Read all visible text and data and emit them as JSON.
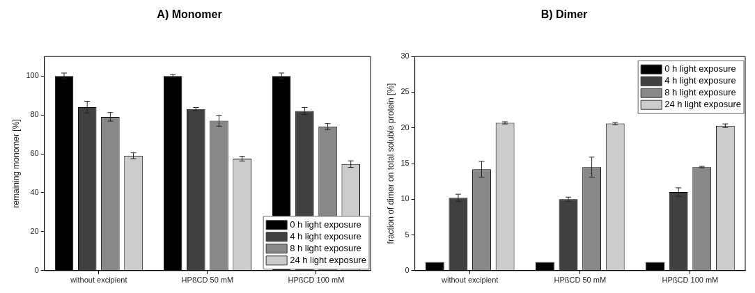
{
  "chart_data": [
    {
      "type": "bar",
      "title": "A) Monomer",
      "ylabel": "remaining monomer [%]",
      "categories": [
        "without excipient",
        "HPßCD 50 mM",
        "HPßCD 100 mM"
      ],
      "ylim": [
        0,
        110
      ],
      "yticks": [
        0,
        20,
        40,
        60,
        80,
        100
      ],
      "grid": false,
      "legend": "bottom right",
      "series": [
        {
          "name": "0 h light exposure",
          "color": "#000000",
          "values": [
            100,
            100,
            100
          ],
          "errors": [
            1.5,
            0.7,
            1.5
          ]
        },
        {
          "name": "4 h light exposure",
          "color": "#404040",
          "values": [
            84,
            83,
            82
          ],
          "errors": [
            3,
            0.8,
            1.8
          ]
        },
        {
          "name": "8 h light exposure",
          "color": "#888888",
          "values": [
            79,
            77,
            74
          ],
          "errors": [
            2.2,
            2.8,
            1.5
          ]
        },
        {
          "name": "24 h light exposure",
          "color": "#cccccc",
          "values": [
            59,
            57.5,
            54.7
          ],
          "errors": [
            1.5,
            1.2,
            1.7
          ]
        }
      ]
    },
    {
      "type": "bar",
      "title": "B) Dimer",
      "ylabel": "fraction of dimer on total soluble protein [%]",
      "categories": [
        "without excipient",
        "HPßCD 50 mM",
        "HPßCD 100 mM"
      ],
      "ylim": [
        0,
        30
      ],
      "yticks": [
        0,
        5,
        10,
        15,
        20,
        25,
        30
      ],
      "grid": false,
      "legend": "top right",
      "series": [
        {
          "name": "0 h light exposure",
          "color": "#000000",
          "values": [
            1.2,
            1.2,
            1.2
          ]
        },
        {
          "name": "4 h light exposure",
          "color": "#404040",
          "values": [
            10.2,
            10.0,
            11.0
          ],
          "errors": [
            0.5,
            0.3,
            0.6
          ]
        },
        {
          "name": "8 h light exposure",
          "color": "#888888",
          "values": [
            14.2,
            14.5,
            14.5
          ],
          "errors": [
            1.1,
            1.4,
            0.1
          ]
        },
        {
          "name": "24 h light exposure",
          "color": "#cccccc",
          "values": [
            20.7,
            20.6,
            20.3
          ],
          "errors": [
            0.15,
            0.15,
            0.25
          ]
        }
      ]
    }
  ]
}
